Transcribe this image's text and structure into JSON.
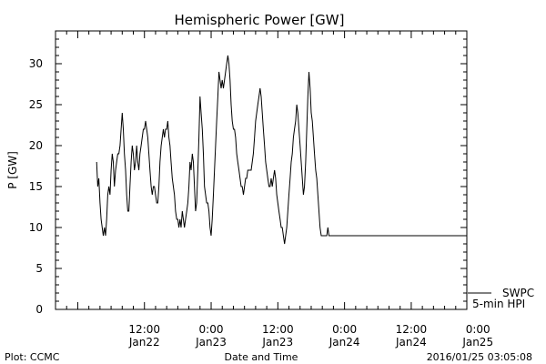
{
  "chart_data": {
    "type": "line",
    "title": "Hemispheric Power [GW]",
    "xlabel": "Date and Time",
    "ylabel": "P [GW]",
    "ylim": [
      0,
      34
    ],
    "yticks": [
      0,
      5,
      10,
      15,
      20,
      25,
      30
    ],
    "xlim_hours": [
      -16,
      58
    ],
    "xticks": [
      {
        "hours": 0,
        "time": "12:00",
        "date": "Jan22"
      },
      {
        "hours": 12,
        "time": "0:00",
        "date": "Jan23"
      },
      {
        "hours": 24,
        "time": "12:00",
        "date": "Jan23"
      },
      {
        "hours": 36,
        "time": "0:00",
        "date": "Jan24"
      },
      {
        "hours": 48,
        "time": "12:00",
        "date": "Jan24"
      },
      {
        "hours": 60,
        "time": "0:00",
        "date": "Jan25"
      }
    ],
    "grid": false,
    "legend": [
      "SWPC",
      "5-min HPI"
    ],
    "series": [
      {
        "values": [
          [
            -8.6,
            18
          ],
          [
            -8.4,
            15
          ],
          [
            -8.2,
            16
          ],
          [
            -8.0,
            13
          ],
          [
            -7.8,
            11
          ],
          [
            -7.6,
            10
          ],
          [
            -7.4,
            9
          ],
          [
            -7.2,
            10
          ],
          [
            -7.0,
            9
          ],
          [
            -6.8,
            11
          ],
          [
            -6.6,
            14
          ],
          [
            -6.4,
            15
          ],
          [
            -6.2,
            14
          ],
          [
            -6.0,
            17
          ],
          [
            -5.8,
            19
          ],
          [
            -5.6,
            18
          ],
          [
            -5.4,
            15
          ],
          [
            -5.2,
            17
          ],
          [
            -5.0,
            18
          ],
          [
            -4.8,
            19
          ],
          [
            -4.6,
            19
          ],
          [
            -4.4,
            20
          ],
          [
            -4.2,
            22
          ],
          [
            -4.0,
            24
          ],
          [
            -3.8,
            22
          ],
          [
            -3.6,
            19
          ],
          [
            -3.4,
            17
          ],
          [
            -3.2,
            14
          ],
          [
            -3.0,
            12
          ],
          [
            -2.8,
            12
          ],
          [
            -2.6,
            15
          ],
          [
            -2.4,
            18
          ],
          [
            -2.2,
            20
          ],
          [
            -2.0,
            19
          ],
          [
            -1.8,
            17
          ],
          [
            -1.6,
            18
          ],
          [
            -1.4,
            20
          ],
          [
            -1.2,
            18
          ],
          [
            -1.0,
            17
          ],
          [
            -0.8,
            19
          ],
          [
            -0.6,
            20
          ],
          [
            -0.4,
            21
          ],
          [
            -0.2,
            22
          ],
          [
            0.0,
            22
          ],
          [
            0.2,
            23
          ],
          [
            0.4,
            22
          ],
          [
            0.6,
            21
          ],
          [
            0.8,
            19
          ],
          [
            1.0,
            17
          ],
          [
            1.2,
            15
          ],
          [
            1.4,
            14
          ],
          [
            1.6,
            15
          ],
          [
            1.8,
            15
          ],
          [
            2.0,
            14
          ],
          [
            2.2,
            13
          ],
          [
            2.4,
            13
          ],
          [
            2.6,
            15
          ],
          [
            2.8,
            18
          ],
          [
            3.0,
            20
          ],
          [
            3.2,
            21
          ],
          [
            3.4,
            22
          ],
          [
            3.6,
            21
          ],
          [
            3.8,
            22
          ],
          [
            4.0,
            22
          ],
          [
            4.2,
            23
          ],
          [
            4.4,
            21
          ],
          [
            4.6,
            20
          ],
          [
            4.8,
            18
          ],
          [
            5.0,
            16
          ],
          [
            5.2,
            15
          ],
          [
            5.4,
            14
          ],
          [
            5.6,
            12
          ],
          [
            5.8,
            11
          ],
          [
            6.0,
            11
          ],
          [
            6.2,
            10
          ],
          [
            6.4,
            11
          ],
          [
            6.6,
            10
          ],
          [
            6.8,
            12
          ],
          [
            7.0,
            11
          ],
          [
            7.2,
            10
          ],
          [
            7.4,
            11
          ],
          [
            7.6,
            12
          ],
          [
            7.8,
            13
          ],
          [
            8.0,
            15
          ],
          [
            8.2,
            18
          ],
          [
            8.4,
            17
          ],
          [
            8.6,
            19
          ],
          [
            8.8,
            18
          ],
          [
            9.0,
            15
          ],
          [
            9.2,
            12
          ],
          [
            9.4,
            13
          ],
          [
            9.6,
            17
          ],
          [
            9.8,
            21
          ],
          [
            10.0,
            26
          ],
          [
            10.2,
            24
          ],
          [
            10.4,
            22
          ],
          [
            10.6,
            19
          ],
          [
            10.8,
            15
          ],
          [
            11.0,
            14
          ],
          [
            11.2,
            13
          ],
          [
            11.4,
            13
          ],
          [
            11.6,
            12
          ],
          [
            11.8,
            10
          ],
          [
            12.0,
            9
          ],
          [
            12.2,
            11
          ],
          [
            12.4,
            14
          ],
          [
            12.6,
            17
          ],
          [
            12.8,
            20
          ],
          [
            13.0,
            23
          ],
          [
            13.2,
            26
          ],
          [
            13.4,
            29
          ],
          [
            13.6,
            28
          ],
          [
            13.8,
            27
          ],
          [
            14.0,
            28
          ],
          [
            14.2,
            27
          ],
          [
            14.4,
            28
          ],
          [
            14.6,
            29
          ],
          [
            14.8,
            30
          ],
          [
            15.0,
            31
          ],
          [
            15.2,
            30
          ],
          [
            15.4,
            28
          ],
          [
            15.6,
            25
          ],
          [
            15.8,
            23
          ],
          [
            16.0,
            22
          ],
          [
            16.2,
            22
          ],
          [
            16.4,
            21
          ],
          [
            16.6,
            19
          ],
          [
            16.8,
            18
          ],
          [
            17.0,
            17
          ],
          [
            17.2,
            16
          ],
          [
            17.4,
            15
          ],
          [
            17.6,
            15
          ],
          [
            17.8,
            14
          ],
          [
            18.0,
            15
          ],
          [
            18.2,
            16
          ],
          [
            18.4,
            16
          ],
          [
            18.6,
            17
          ],
          [
            18.8,
            17
          ],
          [
            19.0,
            17
          ],
          [
            19.2,
            17
          ],
          [
            19.4,
            18
          ],
          [
            19.6,
            19
          ],
          [
            19.8,
            21
          ],
          [
            20.0,
            23
          ],
          [
            20.2,
            24
          ],
          [
            20.4,
            25
          ],
          [
            20.6,
            26
          ],
          [
            20.8,
            27
          ],
          [
            21.0,
            26
          ],
          [
            21.2,
            24
          ],
          [
            21.4,
            22
          ],
          [
            21.6,
            20
          ],
          [
            21.8,
            18
          ],
          [
            22.0,
            17
          ],
          [
            22.2,
            16
          ],
          [
            22.4,
            15
          ],
          [
            22.6,
            15
          ],
          [
            22.8,
            16
          ],
          [
            23.0,
            15
          ],
          [
            23.2,
            16
          ],
          [
            23.4,
            17
          ],
          [
            23.6,
            16
          ],
          [
            23.8,
            14
          ],
          [
            24.0,
            13
          ],
          [
            24.2,
            12
          ],
          [
            24.4,
            11
          ],
          [
            24.6,
            10
          ],
          [
            24.8,
            10
          ],
          [
            25.0,
            9
          ],
          [
            25.2,
            8
          ],
          [
            25.4,
            9
          ],
          [
            25.6,
            10
          ],
          [
            25.8,
            12
          ],
          [
            26.0,
            14
          ],
          [
            26.2,
            16
          ],
          [
            26.4,
            18
          ],
          [
            26.6,
            19
          ],
          [
            26.8,
            21
          ],
          [
            27.0,
            22
          ],
          [
            27.2,
            23
          ],
          [
            27.4,
            25
          ],
          [
            27.6,
            24
          ],
          [
            27.8,
            22
          ],
          [
            28.0,
            20
          ],
          [
            28.2,
            18
          ],
          [
            28.4,
            16
          ],
          [
            28.6,
            14
          ],
          [
            28.8,
            15
          ],
          [
            29.0,
            18
          ],
          [
            29.2,
            22
          ],
          [
            29.4,
            26
          ],
          [
            29.6,
            29
          ],
          [
            29.8,
            27
          ],
          [
            30.0,
            24
          ],
          [
            30.2,
            23
          ],
          [
            30.4,
            21
          ],
          [
            30.6,
            19
          ],
          [
            30.8,
            17
          ],
          [
            31.0,
            16
          ],
          [
            31.2,
            14
          ],
          [
            31.4,
            12
          ],
          [
            31.6,
            10
          ],
          [
            31.8,
            9
          ],
          [
            32.0,
            9
          ],
          [
            32.2,
            9
          ],
          [
            32.4,
            9
          ],
          [
            32.6,
            9
          ],
          [
            32.8,
            9
          ],
          [
            33.0,
            10
          ],
          [
            33.2,
            9
          ],
          [
            33.4,
            9
          ],
          [
            33.6,
            9
          ],
          [
            33.8,
            9
          ],
          [
            34.0,
            9
          ],
          [
            34.2,
            9
          ],
          [
            34.4,
            9
          ],
          [
            34.6,
            9
          ],
          [
            34.8,
            9
          ],
          [
            35.0,
            9
          ]
        ]
      }
    ]
  },
  "footer": {
    "left": "Plot: CCMC",
    "right": "2016/01/25 03:05:08"
  }
}
